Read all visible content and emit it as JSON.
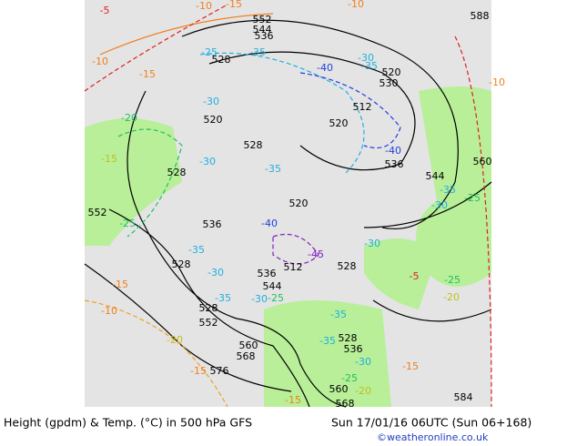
{
  "map": {
    "footer_left": "Height (gpdm) & Temp. (°C) in 500 hPa GFS",
    "footer_right": "Sun 17/01/16 06UTC (Sun 06+168)",
    "credit": "©weatheronline.co.uk",
    "height_labels": [
      "552",
      "544",
      "536",
      "528",
      "520",
      "528",
      "528",
      "552",
      "536",
      "520",
      "520",
      "512",
      "530",
      "536",
      "544",
      "560",
      "588",
      "528",
      "528",
      "552",
      "536",
      "544",
      "512",
      "528",
      "528",
      "536",
      "560",
      "568",
      "576",
      "560",
      "568",
      "584",
      "520"
    ],
    "temp_labels": [
      "-10",
      "-15",
      "-5",
      "-10",
      "-15",
      "-25",
      "-35",
      "-40",
      "-30",
      "-35",
      "-30",
      "-35",
      "-30",
      "-20",
      "-15",
      "-40",
      "-35",
      "-25",
      "-30",
      "-25",
      "-40",
      "-45",
      "-30",
      "-35",
      "-30",
      "-35",
      "-30",
      "-25",
      "-15",
      "-10",
      "-20",
      "-15",
      "-35",
      "-35",
      "-30",
      "-25",
      "-20",
      "-15",
      "-25",
      "-20",
      "-5",
      "-15",
      "-10",
      "-10"
    ]
  }
}
